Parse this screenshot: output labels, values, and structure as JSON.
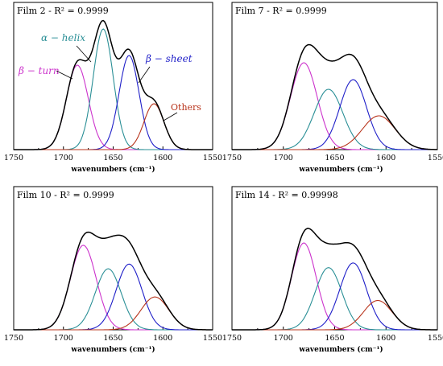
{
  "colors": {
    "envelope": "#000000",
    "beta_turn": "#cc33cc",
    "alpha_helix": "#2a8f96",
    "beta_sheet": "#1f1fc8",
    "others": "#b8341c",
    "frame": "#000000"
  },
  "chart_data": [
    {
      "type": "line",
      "title": "Film 2 - R² = 0.9999",
      "xlabel": "wavenumbers (cm⁻¹)",
      "xlim": [
        1750,
        1550
      ],
      "ylim": [
        0,
        1.22
      ],
      "xticks": [
        1750,
        1700,
        1650,
        1600,
        1550
      ],
      "series": [
        {
          "name": "β − turn",
          "role": "beta_turn",
          "center": 1686,
          "height": 0.7,
          "width": 11
        },
        {
          "name": "α − helix",
          "role": "alpha_helix",
          "center": 1660,
          "height": 1.0,
          "width": 10
        },
        {
          "name": "β − sheet",
          "role": "beta_sheet",
          "center": 1634,
          "height": 0.78,
          "width": 10
        },
        {
          "name": "Others",
          "role": "others",
          "center": 1609,
          "height": 0.38,
          "width": 10
        }
      ],
      "annotations": [
        {
          "text": "β − turn",
          "role": "beta_turn"
        },
        {
          "text": "α − helix",
          "role": "alpha_helix"
        },
        {
          "text": "β − sheet",
          "role": "beta_sheet"
        },
        {
          "text": "Others",
          "role": "others"
        }
      ]
    },
    {
      "type": "line",
      "title": "Film 7 - R² = 0.9999",
      "xlabel": "wavenumbers (cm⁻¹)",
      "xlim": [
        1750,
        1550
      ],
      "ylim": [
        0,
        1.22
      ],
      "xticks": [
        1750,
        1700,
        1650,
        1600,
        1550
      ],
      "series": [
        {
          "role": "beta_turn",
          "center": 1680,
          "height": 0.72,
          "width": 13
        },
        {
          "role": "alpha_helix",
          "center": 1656,
          "height": 0.5,
          "width": 14
        },
        {
          "role": "beta_sheet",
          "center": 1632,
          "height": 0.58,
          "width": 13
        },
        {
          "role": "others",
          "center": 1607,
          "height": 0.28,
          "width": 16
        }
      ]
    },
    {
      "type": "line",
      "title": "Film 10 - R² = 0.9999",
      "xlabel": "wavenumbers (cm⁻¹)",
      "xlim": [
        1750,
        1550
      ],
      "ylim": [
        0,
        1.22
      ],
      "xticks": [
        1750,
        1700,
        1650,
        1600,
        1550
      ],
      "series": [
        {
          "role": "beta_turn",
          "center": 1680,
          "height": 0.72,
          "width": 13
        },
        {
          "role": "alpha_helix",
          "center": 1655,
          "height": 0.52,
          "width": 13
        },
        {
          "role": "beta_sheet",
          "center": 1634,
          "height": 0.56,
          "width": 13
        },
        {
          "role": "others",
          "center": 1608,
          "height": 0.28,
          "width": 14
        }
      ]
    },
    {
      "type": "line",
      "title": "Film 14 - R² = 0.99998",
      "xlabel": "wavenumbers (cm⁻¹)",
      "xlim": [
        1750,
        1550
      ],
      "ylim": [
        0,
        1.22
      ],
      "xticks": [
        1750,
        1700,
        1650,
        1600,
        1550
      ],
      "series": [
        {
          "role": "beta_turn",
          "center": 1680,
          "height": 0.74,
          "width": 12
        },
        {
          "role": "alpha_helix",
          "center": 1656,
          "height": 0.53,
          "width": 13
        },
        {
          "role": "beta_sheet",
          "center": 1632,
          "height": 0.57,
          "width": 13
        },
        {
          "role": "others",
          "center": 1608,
          "height": 0.25,
          "width": 14
        }
      ]
    }
  ]
}
